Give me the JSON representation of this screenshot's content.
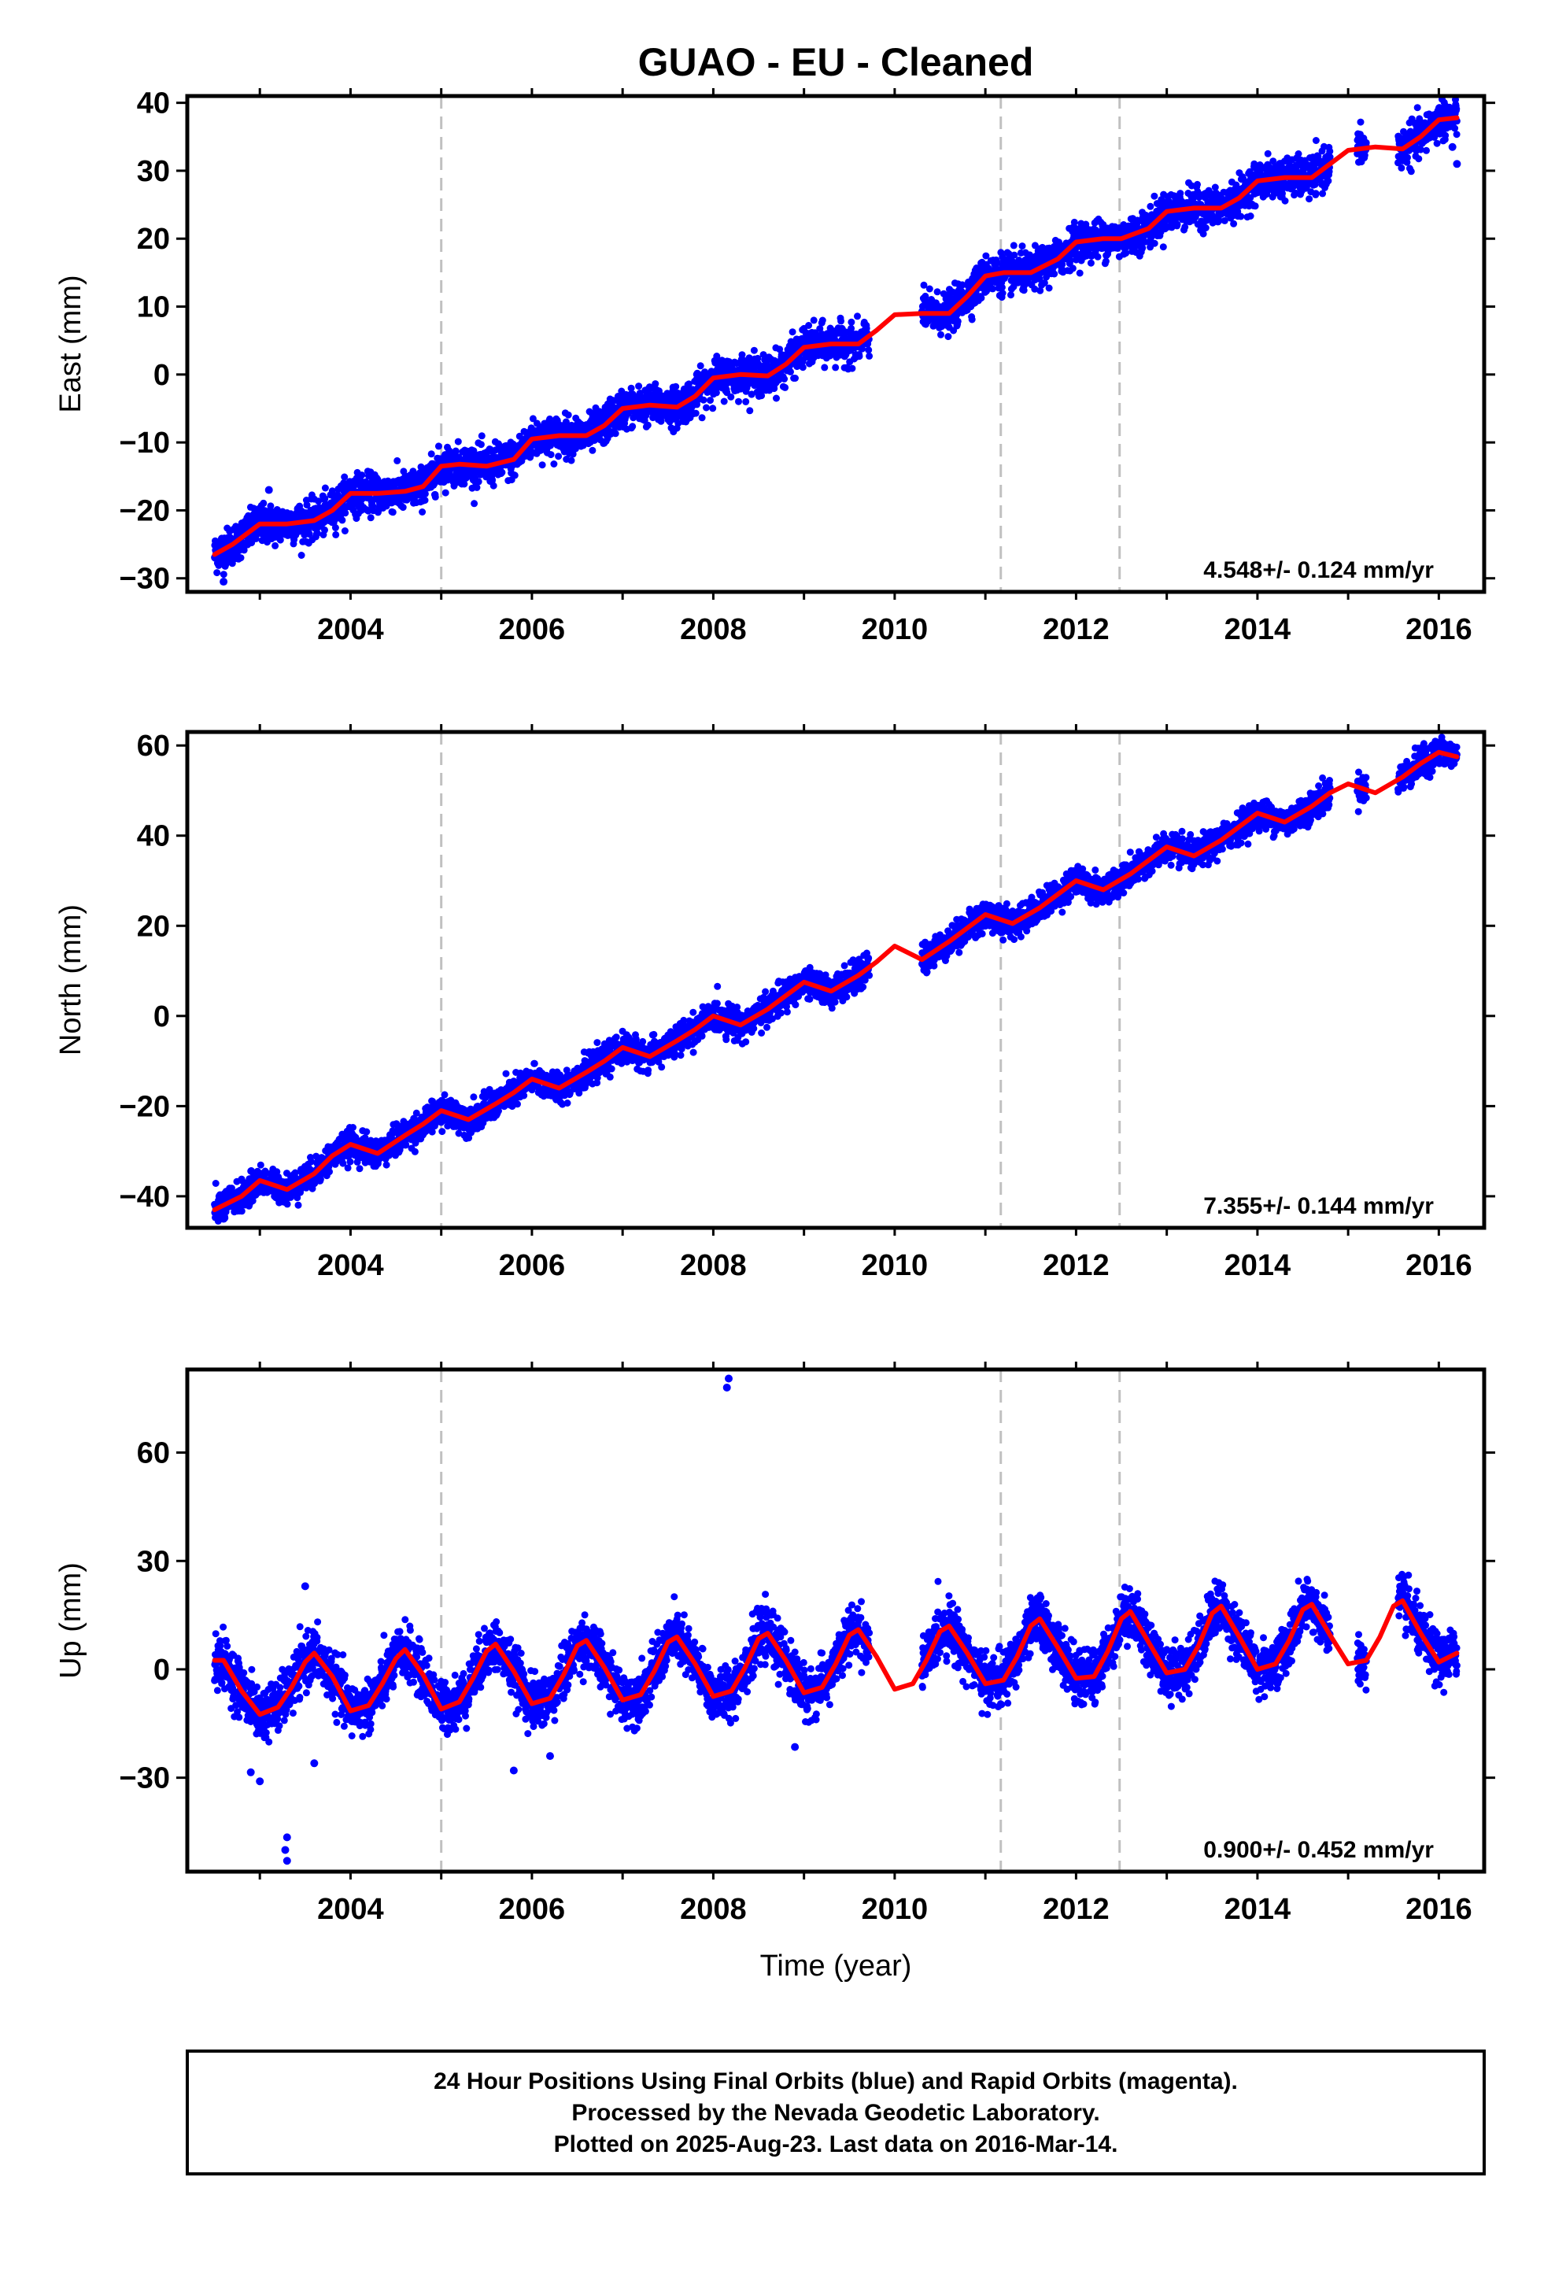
{
  "figure": {
    "title": "GUAO  - EU - Cleaned",
    "xlabel": "Time (year)",
    "footer": [
      "24 Hour Positions Using Final Orbits (blue) and Rapid Orbits (magenta).",
      "Processed by the Nevada Geodetic Laboratory.",
      "Plotted on 2025-Aug-23. Last data on 2016-Mar-14."
    ],
    "colors": {
      "data": "#0000ff",
      "model": "#ff0000",
      "breaks": "#c0c0c0",
      "frame": "#000000"
    },
    "event_lines": [
      2005.0,
      2011.17,
      2012.48
    ]
  },
  "chart_data": [
    {
      "type": "scatter",
      "ylabel": "East (mm)",
      "rate_label": "4.548+/- 0.124 mm/yr",
      "xlim": [
        2002.2,
        2016.5
      ],
      "ylim": [
        -32,
        41
      ],
      "xticks": [
        2004,
        2006,
        2008,
        2010,
        2012,
        2014,
        2016
      ],
      "yticks": [
        -30,
        -20,
        -10,
        0,
        10,
        20,
        30,
        40
      ],
      "series": [
        {
          "kind": "model",
          "x": [
            2002.5,
            2002.7,
            2003.0,
            2003.3,
            2003.6,
            2003.8,
            2004.0,
            2004.3,
            2004.6,
            2004.8,
            2005.0,
            2005.2,
            2005.5,
            2005.8,
            2006.0,
            2006.3,
            2006.6,
            2006.8,
            2007.0,
            2007.3,
            2007.6,
            2007.8,
            2008.0,
            2008.3,
            2008.6,
            2008.8,
            2009.0,
            2009.3,
            2009.6,
            2009.8,
            2010.0,
            2010.3,
            2010.6,
            2010.8,
            2011.0,
            2011.2,
            2011.5,
            2011.8,
            2012.0,
            2012.3,
            2012.5,
            2012.8,
            2013.0,
            2013.3,
            2013.6,
            2013.8,
            2014.0,
            2014.3,
            2014.6,
            2014.8,
            2015.0,
            2015.3,
            2015.6,
            2015.8,
            2016.0,
            2016.2
          ],
          "y": [
            -26.5,
            -25.0,
            -22.0,
            -22.0,
            -21.5,
            -20.0,
            -17.5,
            -17.5,
            -17.2,
            -16.5,
            -13.5,
            -13.2,
            -13.5,
            -12.5,
            -9.5,
            -9.0,
            -9.0,
            -7.5,
            -5.0,
            -4.5,
            -4.8,
            -3.2,
            -0.5,
            0.0,
            -0.2,
            1.5,
            4.0,
            4.5,
            4.5,
            6.5,
            8.8,
            9.0,
            9.0,
            11.5,
            14.5,
            15.0,
            15.0,
            17.0,
            19.5,
            20.0,
            20.0,
            21.5,
            24.0,
            24.5,
            24.5,
            26.0,
            28.5,
            29.0,
            29.0,
            31.0,
            33.0,
            33.5,
            33.2,
            35.0,
            37.5,
            37.8
          ]
        },
        {
          "kind": "observations",
          "segments": [
            [
              2002.5,
              2009.72
            ],
            [
              2010.3,
              2014.8
            ],
            [
              2015.1,
              2015.2
            ],
            [
              2015.55,
              2016.2
            ]
          ],
          "scatter_mm": 1.4,
          "outliers": [
            {
              "x": 2002.6,
              "y": -30.5
            },
            {
              "x": 2003.1,
              "y": -17.0
            },
            {
              "x": 2016.2,
              "y": 31.0
            },
            {
              "x": 2016.15,
              "y": 33.5
            }
          ]
        }
      ]
    },
    {
      "type": "scatter",
      "ylabel": "North (mm)",
      "rate_label": "7.355+/- 0.144 mm/yr",
      "xlim": [
        2002.2,
        2016.5
      ],
      "ylim": [
        -47,
        63
      ],
      "xticks": [
        2004,
        2006,
        2008,
        2010,
        2012,
        2014,
        2016
      ],
      "yticks": [
        -40,
        -20,
        0,
        20,
        40,
        60
      ],
      "series": [
        {
          "kind": "model",
          "x": [
            2002.5,
            2002.8,
            2003.0,
            2003.3,
            2003.6,
            2003.8,
            2004.0,
            2004.3,
            2004.6,
            2004.8,
            2005.0,
            2005.3,
            2005.6,
            2005.8,
            2006.0,
            2006.3,
            2006.6,
            2006.8,
            2007.0,
            2007.3,
            2007.6,
            2007.8,
            2008.0,
            2008.3,
            2008.6,
            2008.8,
            2009.0,
            2009.3,
            2009.6,
            2009.8,
            2010.0,
            2010.3,
            2010.6,
            2010.8,
            2011.0,
            2011.3,
            2011.6,
            2011.8,
            2012.0,
            2012.3,
            2012.6,
            2012.8,
            2013.0,
            2013.3,
            2013.6,
            2013.8,
            2014.0,
            2014.3,
            2014.6,
            2014.8,
            2015.0,
            2015.3,
            2015.6,
            2015.8,
            2016.0,
            2016.2
          ],
          "y": [
            -43.0,
            -40.0,
            -36.5,
            -38.5,
            -35.0,
            -31.0,
            -28.5,
            -30.5,
            -26.5,
            -24.0,
            -21.0,
            -23.0,
            -19.5,
            -17.0,
            -14.0,
            -16.0,
            -12.5,
            -10.0,
            -7.0,
            -9.0,
            -5.5,
            -3.0,
            0.0,
            -2.0,
            1.5,
            4.5,
            7.5,
            5.5,
            9.0,
            12.0,
            15.5,
            12.5,
            16.5,
            19.5,
            22.5,
            20.5,
            24.0,
            27.0,
            30.0,
            28.0,
            31.5,
            34.5,
            37.5,
            35.5,
            39.0,
            42.0,
            45.0,
            43.0,
            46.5,
            49.5,
            51.5,
            49.5,
            53.0,
            56.0,
            58.5,
            57.5
          ]
        },
        {
          "kind": "observations",
          "segments": [
            [
              2002.5,
              2009.72
            ],
            [
              2010.3,
              2014.8
            ],
            [
              2015.1,
              2015.2
            ],
            [
              2015.55,
              2016.2
            ]
          ],
          "scatter_mm": 1.6,
          "outliers": [
            {
              "x": 2016.05,
              "y": 60.5
            },
            {
              "x": 2002.6,
              "y": -45.0
            }
          ]
        }
      ]
    },
    {
      "type": "scatter",
      "ylabel": "Up (mm)",
      "rate_label": "0.900+/- 0.452 mm/yr",
      "xlim": [
        2002.2,
        2016.5
      ],
      "ylim": [
        -56,
        83
      ],
      "xticks": [
        2004,
        2006,
        2008,
        2010,
        2012,
        2014,
        2016
      ],
      "yticks": [
        -30,
        0,
        30,
        60
      ],
      "series": [
        {
          "kind": "model",
          "x": [
            2002.5,
            2002.6,
            2002.8,
            2003.0,
            2003.2,
            2003.35,
            2003.5,
            2003.6,
            2003.8,
            2004.0,
            2004.2,
            2004.35,
            2004.5,
            2004.6,
            2004.8,
            2005.0,
            2005.2,
            2005.35,
            2005.5,
            2005.6,
            2005.8,
            2006.0,
            2006.2,
            2006.35,
            2006.5,
            2006.6,
            2006.8,
            2007.0,
            2007.2,
            2007.35,
            2007.5,
            2007.6,
            2007.8,
            2008.0,
            2008.2,
            2008.35,
            2008.5,
            2008.6,
            2008.8,
            2009.0,
            2009.2,
            2009.35,
            2009.5,
            2009.6,
            2009.8,
            2010.0,
            2010.2,
            2010.35,
            2010.5,
            2010.6,
            2010.8,
            2011.0,
            2011.2,
            2011.35,
            2011.5,
            2011.6,
            2011.8,
            2012.0,
            2012.2,
            2012.35,
            2012.5,
            2012.6,
            2012.8,
            2013.0,
            2013.2,
            2013.35,
            2013.5,
            2013.6,
            2013.8,
            2014.0,
            2014.2,
            2014.35,
            2014.5,
            2014.6,
            2014.8,
            2015.0,
            2015.2,
            2015.35,
            2015.5,
            2015.6,
            2015.8,
            2016.0,
            2016.2
          ],
          "y": [
            2.5,
            2.5,
            -6.0,
            -12.5,
            -10.5,
            -5.0,
            2.0,
            4.5,
            -2.0,
            -11.5,
            -10.0,
            -4.0,
            3.0,
            5.5,
            -1.5,
            -11.0,
            -9.0,
            -2.5,
            5.0,
            7.0,
            -0.5,
            -9.5,
            -8.0,
            -1.5,
            6.5,
            8.0,
            0.5,
            -8.5,
            -7.0,
            -0.5,
            7.5,
            9.0,
            1.5,
            -7.5,
            -6.0,
            0.5,
            8.5,
            10.0,
            2.5,
            -6.5,
            -5.0,
            1.5,
            9.5,
            11.0,
            3.5,
            -5.5,
            -4.0,
            2.5,
            10.5,
            12.0,
            4.5,
            -4.0,
            -3.0,
            3.5,
            12.0,
            14.0,
            6.0,
            -2.5,
            -2.0,
            5.0,
            14.0,
            16.0,
            7.5,
            -1.0,
            0.0,
            6.5,
            15.5,
            17.5,
            9.0,
            0.0,
            1.5,
            8.0,
            16.5,
            18.0,
            9.5,
            1.5,
            2.5,
            9.0,
            17.5,
            19.0,
            10.0,
            2.0,
            4.5
          ]
        },
        {
          "kind": "observations",
          "segments": [
            [
              2002.5,
              2009.72
            ],
            [
              2010.3,
              2014.8
            ],
            [
              2015.1,
              2015.2
            ],
            [
              2015.55,
              2016.2
            ]
          ],
          "scatter_mm": 3.5,
          "outliers": [
            {
              "x": 2008.15,
              "y": 78.0
            },
            {
              "x": 2008.17,
              "y": 80.5
            },
            {
              "x": 2003.3,
              "y": -46.5
            },
            {
              "x": 2003.3,
              "y": -53.0
            },
            {
              "x": 2003.28,
              "y": -50.0
            },
            {
              "x": 2003.0,
              "y": -31.0
            },
            {
              "x": 2002.9,
              "y": -28.5
            },
            {
              "x": 2005.8,
              "y": -28.0
            },
            {
              "x": 2003.5,
              "y": 23.0
            },
            {
              "x": 2003.6,
              "y": -26.0
            },
            {
              "x": 2008.9,
              "y": -21.5
            },
            {
              "x": 2006.2,
              "y": -24.0
            }
          ]
        }
      ]
    }
  ]
}
